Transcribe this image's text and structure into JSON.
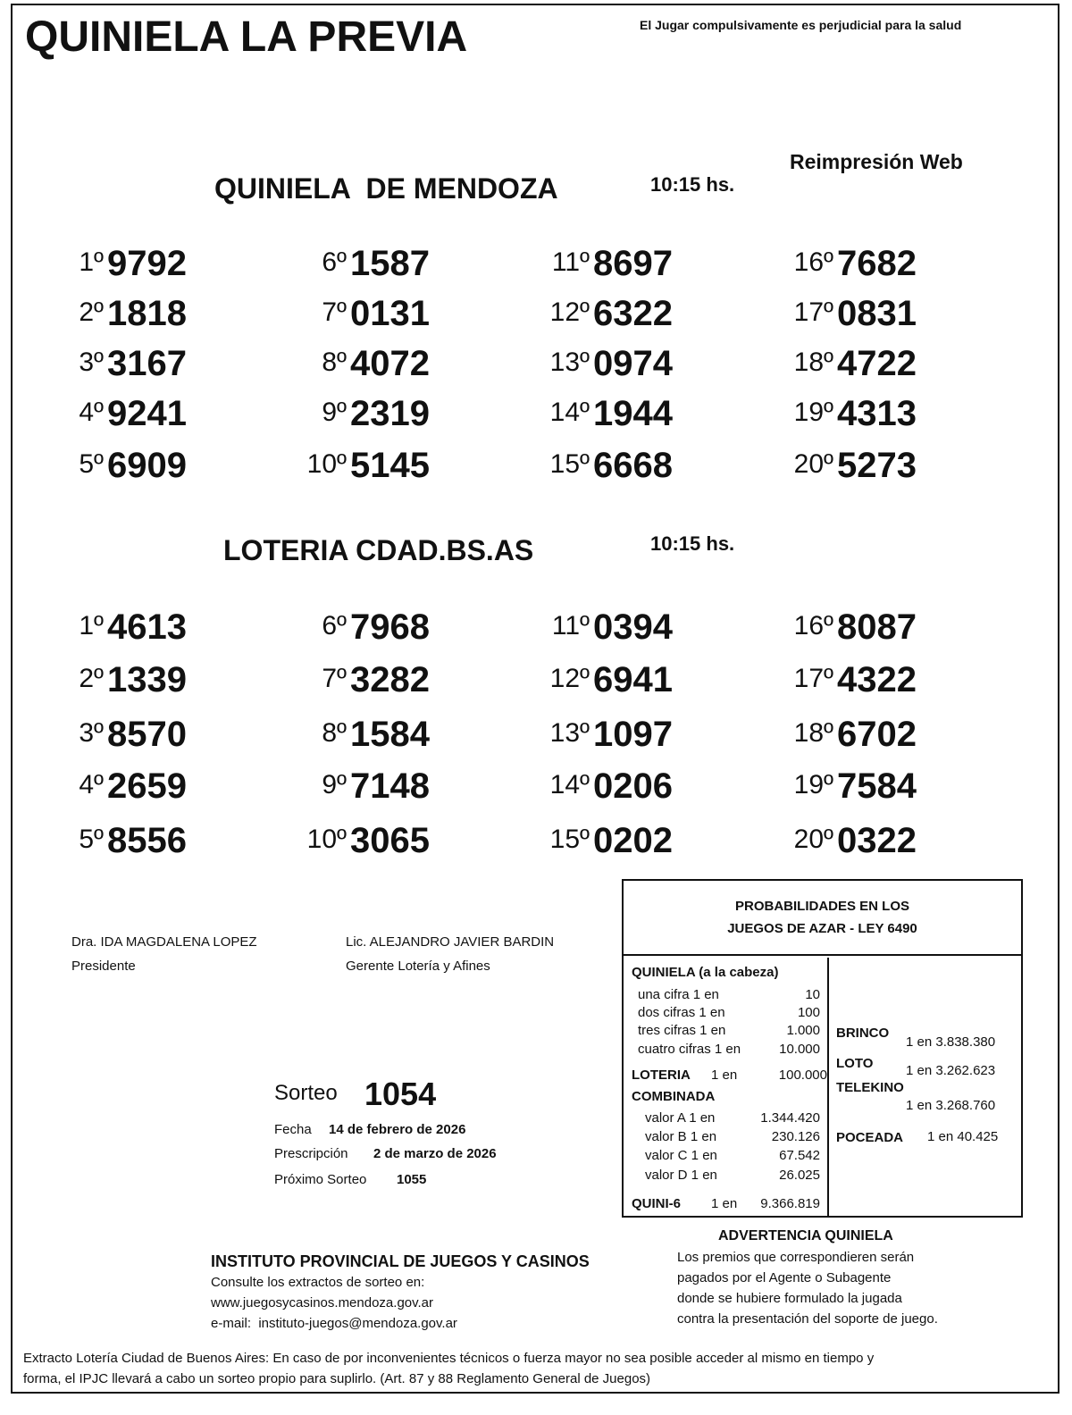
{
  "header": {
    "title": "QUINIELA LA PREVIA",
    "warning": "El Jugar compulsivamente es perjudicial para la salud",
    "reprint": "Reimpresión Web"
  },
  "draws": [
    {
      "title": "QUINIELA  DE MENDOZA",
      "time": "10:15 hs.",
      "results": [
        {
          "pos": "1º",
          "number": "9792"
        },
        {
          "pos": "2º",
          "number": "1818"
        },
        {
          "pos": "3º",
          "number": "3167"
        },
        {
          "pos": "4º",
          "number": "9241"
        },
        {
          "pos": "5º",
          "number": "6909"
        },
        {
          "pos": "6º",
          "number": "1587"
        },
        {
          "pos": "7º",
          "number": "0131"
        },
        {
          "pos": "8º",
          "number": "4072"
        },
        {
          "pos": "9º",
          "number": "2319"
        },
        {
          "pos": "10º",
          "number": "5145"
        },
        {
          "pos": "11º",
          "number": "8697"
        },
        {
          "pos": "12º",
          "number": "6322"
        },
        {
          "pos": "13º",
          "number": "0974"
        },
        {
          "pos": "14º",
          "number": "1944"
        },
        {
          "pos": "15º",
          "number": "6668"
        },
        {
          "pos": "16º",
          "number": "7682"
        },
        {
          "pos": "17º",
          "number": "0831"
        },
        {
          "pos": "18º",
          "number": "4722"
        },
        {
          "pos": "19º",
          "number": "4313"
        },
        {
          "pos": "20º",
          "number": "5273"
        }
      ]
    },
    {
      "title": "LOTERIA CDAD.BS.AS",
      "time": "10:15 hs.",
      "results": [
        {
          "pos": "1º",
          "number": "4613"
        },
        {
          "pos": "2º",
          "number": "1339"
        },
        {
          "pos": "3º",
          "number": "8570"
        },
        {
          "pos": "4º",
          "number": "2659"
        },
        {
          "pos": "5º",
          "number": "8556"
        },
        {
          "pos": "6º",
          "number": "7968"
        },
        {
          "pos": "7º",
          "number": "3282"
        },
        {
          "pos": "8º",
          "number": "1584"
        },
        {
          "pos": "9º",
          "number": "7148"
        },
        {
          "pos": "10º",
          "number": "3065"
        },
        {
          "pos": "11º",
          "number": "0394"
        },
        {
          "pos": "12º",
          "number": "6941"
        },
        {
          "pos": "13º",
          "number": "1097"
        },
        {
          "pos": "14º",
          "number": "0206"
        },
        {
          "pos": "15º",
          "number": "0202"
        },
        {
          "pos": "16º",
          "number": "8087"
        },
        {
          "pos": "17º",
          "number": "4322"
        },
        {
          "pos": "18º",
          "number": "6702"
        },
        {
          "pos": "19º",
          "number": "7584"
        },
        {
          "pos": "20º",
          "number": "0322"
        }
      ]
    }
  ],
  "signatures": [
    {
      "name": "Dra. IDA MAGDALENA LOPEZ",
      "role": "Presidente"
    },
    {
      "name": "Lic. ALEJANDRO JAVIER BARDIN",
      "role": "Gerente Lotería y Afines"
    }
  ],
  "sorteo": {
    "label": "Sorteo",
    "number": "1054",
    "fecha_label": "Fecha",
    "fecha": "14 de febrero de 2026",
    "prescripcion_label": "Prescripción",
    "prescripcion": "2 de marzo de 2026",
    "proximo_label": "Próximo Sorteo",
    "proximo": "1055"
  },
  "odds": {
    "title": [
      "PROBABILIDADES EN LOS",
      "JUEGOS DE AZAR - LEY 6490"
    ],
    "quiniela": {
      "title": "QUINIELA (a la cabeza)",
      "rows": [
        {
          "label": "una cifra 1 en",
          "value": "10"
        },
        {
          "label": "dos cifras 1 en",
          "value": "100"
        },
        {
          "label": "tres cifras 1 en",
          "value": "1.000"
        },
        {
          "label": "cuatro cifras 1 en",
          "value": "10.000"
        }
      ]
    },
    "loteria": {
      "label": "LOTERIA",
      "odds": "1 en",
      "value": "100.000"
    },
    "combinada": {
      "title": "COMBINADA",
      "rows": [
        {
          "label": "valor A 1 en",
          "value": "1.344.420"
        },
        {
          "label": "valor B 1 en",
          "value": "230.126"
        },
        {
          "label": "valor C 1 en",
          "value": "67.542"
        },
        {
          "label": "valor D 1 en",
          "value": "26.025"
        }
      ]
    },
    "quini6": {
      "label": "QUINI-6",
      "odds": "1 en",
      "value": "9.366.819"
    },
    "brinco": {
      "label": "BRINCO",
      "value": "1 en 3.838.380"
    },
    "loto": {
      "label": "LOTO",
      "value": "1 en 3.262.623"
    },
    "telekino": {
      "label": "TELEKINO",
      "value": "1 en 3.268.760"
    },
    "poceada": {
      "label": "POCEADA",
      "value": "1 en 40.425"
    }
  },
  "institute": {
    "name": "INSTITUTO PROVINCIAL DE JUEGOS Y CASINOS",
    "lines": [
      "Consulte los extractos de sorteo en:",
      "www.juegosycasinos.mendoza.gov.ar",
      "e-mail:  instituto-juegos@mendoza.gov.ar"
    ]
  },
  "advertencia": {
    "title": "ADVERTENCIA QUINIELA",
    "lines": [
      "Los premios que correspondieren serán",
      "pagados por el Agente o Subagente",
      "donde se hubiere formulado la jugada",
      "contra la presentación del soporte de juego."
    ]
  },
  "footer": [
    "Extracto Lotería Ciudad de Buenos Aires: En caso de por inconvenientes técnicos o fuerza mayor no sea posible acceder al mismo en tiempo y",
    "forma, el IPJC llevará a cabo un sorteo propio para suplirlo. (Art. 87 y 88 Reglamento General de Juegos)"
  ]
}
